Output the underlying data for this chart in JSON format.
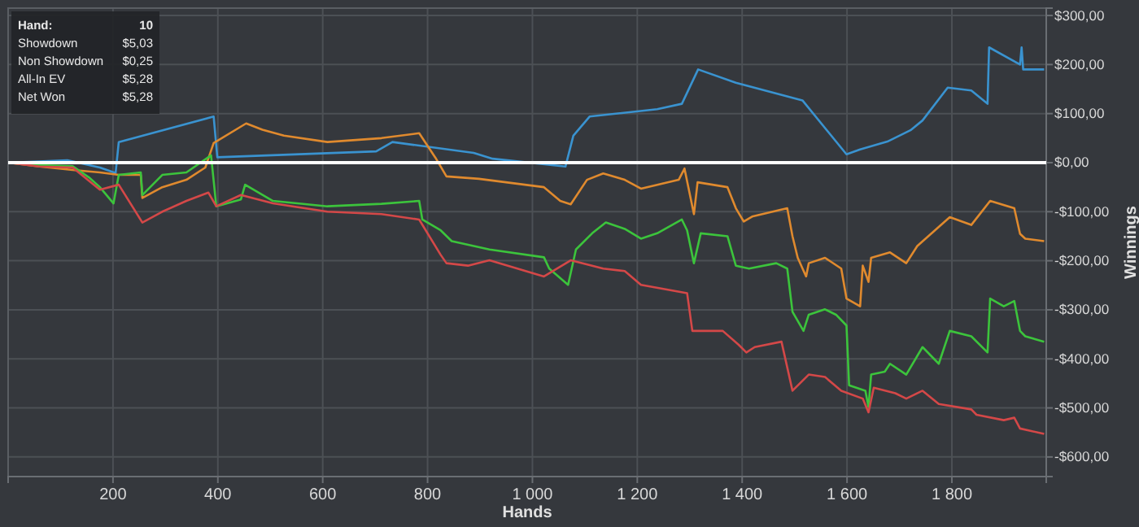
{
  "chart_data": {
    "type": "line",
    "xlabel": "Hands",
    "ylabel": "Winnings",
    "xlim": [
      0,
      1980
    ],
    "ylim": [
      -640,
      315
    ],
    "xticks": [
      200,
      400,
      600,
      800,
      {
        "value": 1000,
        "label": "1 000"
      },
      {
        "value": 1200,
        "label": "1 200"
      },
      {
        "value": 1400,
        "label": "1 400"
      },
      {
        "value": 1600,
        "label": "1 600"
      },
      {
        "value": 1800,
        "label": "1 800"
      }
    ],
    "yticks": [
      {
        "value": -600,
        "label": "-$600,00"
      },
      {
        "value": -500,
        "label": "-$500,00"
      },
      {
        "value": -400,
        "label": "-$400,00"
      },
      {
        "value": -300,
        "label": "-$300,00"
      },
      {
        "value": -200,
        "label": "-$200,00"
      },
      {
        "value": -100,
        "label": "-$100,00"
      },
      {
        "value": 0,
        "label": "$0,00"
      },
      {
        "value": 100,
        "label": "$100,00"
      },
      {
        "value": 200,
        "label": "$200,00"
      },
      {
        "value": 300,
        "label": "$300,00"
      }
    ],
    "grid": true,
    "line_style": "solid",
    "ref_lines": [
      {
        "axis": "y",
        "value": 0,
        "color": "#ffffff"
      }
    ],
    "annotations": [
      "Hand:",
      "10",
      "Showdown",
      "$5,03",
      "Non Showdown",
      "$0,25",
      "All-In EV",
      "$5,28",
      "Net Won",
      "$5,28"
    ],
    "series": [
      {
        "color": "#3a93d0",
        "x": [
          1,
          113,
          175,
          205,
          211,
          392,
          399,
          702,
          733,
          888,
          924,
          1063,
          1078,
          1109,
          1238,
          1285,
          1316,
          1388,
          1515,
          1599,
          1625,
          1677,
          1721,
          1744,
          1792,
          1837,
          1868,
          1871,
          1930,
          1933,
          1936,
          1976
        ],
        "values": [
          0,
          5,
          -10,
          -21,
          42,
          94,
          11,
          23,
          42,
          20,
          8,
          -8,
          55,
          94,
          109,
          120,
          190,
          163,
          127,
          17,
          27,
          43,
          66,
          86,
          153,
          147,
          120,
          235,
          200,
          235,
          190,
          190
        ]
      },
      {
        "color": "#e08a2e",
        "x": [
          1,
          60,
          123,
          175,
          211,
          253,
          256,
          294,
          340,
          376,
          392,
          454,
          485,
          526,
          609,
          712,
          784,
          815,
          836,
          898,
          1022,
          1053,
          1073,
          1104,
          1135,
          1176,
          1207,
          1279,
          1290,
          1308,
          1315,
          1372,
          1388,
          1403,
          1419,
          1486,
          1496,
          1506,
          1522,
          1527,
          1558,
          1589,
          1599,
          1625,
          1630,
          1641,
          1646,
          1682,
          1713,
          1734,
          1796,
          1837,
          1873,
          1919,
          1930,
          1940,
          1976
        ],
        "values": [
          0,
          -8,
          -15,
          -20,
          -25,
          -25,
          -72,
          -50,
          -35,
          -10,
          40,
          80,
          67,
          55,
          42,
          50,
          60,
          10,
          -28,
          -33,
          -50,
          -78,
          -85,
          -35,
          -22,
          -35,
          -53,
          -35,
          -12,
          -105,
          -40,
          -50,
          -93,
          -120,
          -110,
          -93,
          -150,
          -194,
          -232,
          -205,
          -194,
          -216,
          -277,
          -293,
          -210,
          -243,
          -194,
          -183,
          -205,
          -170,
          -111,
          -127,
          -78,
          -93,
          -145,
          -155,
          -160
        ]
      },
      {
        "color": "#3cc43c",
        "x": [
          1,
          60,
          123,
          154,
          175,
          201,
          211,
          253,
          256,
          294,
          340,
          387,
          397,
          444,
          452,
          505,
          609,
          712,
          784,
          790,
          825,
          846,
          918,
          1022,
          1032,
          1068,
          1083,
          1114,
          1140,
          1176,
          1207,
          1238,
          1285,
          1295,
          1308,
          1321,
          1372,
          1388,
          1413,
          1465,
          1486,
          1496,
          1517,
          1527,
          1558,
          1579,
          1599,
          1604,
          1635,
          1641,
          1646,
          1672,
          1682,
          1713,
          1744,
          1775,
          1796,
          1837,
          1868,
          1873,
          1899,
          1919,
          1930,
          1940,
          1976
        ],
        "values": [
          0,
          -5,
          -7,
          -30,
          -50,
          -83,
          -25,
          -20,
          -66,
          -25,
          -20,
          15,
          -89,
          -75,
          -45,
          -78,
          -89,
          -84,
          -78,
          -116,
          -138,
          -160,
          -177,
          -193,
          -216,
          -249,
          -177,
          -144,
          -122,
          -135,
          -155,
          -144,
          -116,
          -138,
          -205,
          -144,
          -150,
          -210,
          -216,
          -205,
          -216,
          -304,
          -343,
          -310,
          -299,
          -310,
          -332,
          -454,
          -465,
          -498,
          -432,
          -426,
          -410,
          -432,
          -376,
          -410,
          -343,
          -354,
          -387,
          -277,
          -293,
          -282,
          -343,
          -354,
          -365
        ]
      },
      {
        "color": "#d44848",
        "x": [
          1,
          60,
          123,
          175,
          211,
          256,
          294,
          340,
          382,
          397,
          444,
          505,
          609,
          712,
          784,
          825,
          836,
          877,
          918,
          1022,
          1073,
          1135,
          1176,
          1207,
          1295,
          1305,
          1363,
          1393,
          1408,
          1424,
          1475,
          1496,
          1527,
          1558,
          1589,
          1630,
          1641,
          1651,
          1692,
          1713,
          1744,
          1775,
          1837,
          1847,
          1899,
          1919,
          1930,
          1976
        ],
        "values": [
          0,
          -8,
          -10,
          -55,
          -45,
          -122,
          -100,
          -78,
          -61,
          -89,
          -66,
          -83,
          -100,
          -105,
          -116,
          -188,
          -205,
          -210,
          -199,
          -232,
          -199,
          -216,
          -221,
          -249,
          -266,
          -343,
          -343,
          -371,
          -387,
          -376,
          -365,
          -465,
          -432,
          -437,
          -465,
          -481,
          -509,
          -459,
          -470,
          -481,
          -465,
          -492,
          -503,
          -514,
          -525,
          -520,
          -542,
          -553
        ]
      }
    ]
  }
}
